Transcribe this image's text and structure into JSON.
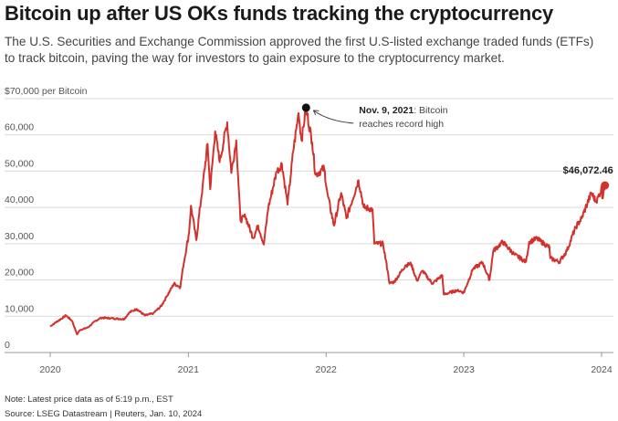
{
  "header": {
    "title": "Bitcoin up after US OKs funds tracking the cryptocurrency",
    "subtitle": "The U.S. Securities and Exchange Commission approved the first U.S-listed exchange traded funds (ETFs) to track bitcoin, paving the way for investors to gain exposure to the cryptocurrency market."
  },
  "footer": {
    "note": "Note: Latest price data as of 5:19 p.m., EST",
    "source": "Source: LSEG Datastream | Reuters, Jan. 10, 2024"
  },
  "colors": {
    "line": "#d2322d",
    "grid": "#d9d9d9",
    "axis": "#999999",
    "text": "#222222"
  },
  "chart_data": {
    "type": "line",
    "title": "Bitcoin up after US OKs funds tracking the cryptocurrency",
    "ylabel": "$70,000 per Bitcoin",
    "xlabel": "",
    "ylim": [
      0,
      70000
    ],
    "xlim": [
      "2020-01-01",
      "2024-01-10"
    ],
    "grid": true,
    "y_ticks": [
      {
        "value": 70000,
        "label": "$70,000 per Bitcoin"
      },
      {
        "value": 60000,
        "label": "60,000"
      },
      {
        "value": 50000,
        "label": "50,000"
      },
      {
        "value": 40000,
        "label": "40,000"
      },
      {
        "value": 30000,
        "label": "30,000"
      },
      {
        "value": 20000,
        "label": "20,000"
      },
      {
        "value": 10000,
        "label": "10,000"
      },
      {
        "value": 0,
        "label": "0"
      }
    ],
    "x_ticks": [
      {
        "value": "2020-01-01",
        "label": "2020"
      },
      {
        "value": "2021-01-01",
        "label": "2021"
      },
      {
        "value": "2022-01-01",
        "label": "2022"
      },
      {
        "value": "2023-01-01",
        "label": "2023"
      },
      {
        "value": "2024-01-01",
        "label": "2024"
      }
    ],
    "series": [
      {
        "color": "#d2322d",
        "points": [
          [
            "2020-01-01",
            7200
          ],
          [
            "2020-01-20",
            8600
          ],
          [
            "2020-02-12",
            10200
          ],
          [
            "2020-02-28",
            8700
          ],
          [
            "2020-03-12",
            5000
          ],
          [
            "2020-03-20",
            6200
          ],
          [
            "2020-04-10",
            6900
          ],
          [
            "2020-04-30",
            8700
          ],
          [
            "2020-05-15",
            9600
          ],
          [
            "2020-06-15",
            9400
          ],
          [
            "2020-07-15",
            9200
          ],
          [
            "2020-07-28",
            11000
          ],
          [
            "2020-08-17",
            12000
          ],
          [
            "2020-09-08",
            10200
          ],
          [
            "2020-09-30",
            10800
          ],
          [
            "2020-10-21",
            12800
          ],
          [
            "2020-11-05",
            15500
          ],
          [
            "2020-11-24",
            19000
          ],
          [
            "2020-12-11",
            18000
          ],
          [
            "2020-12-17",
            23000
          ],
          [
            "2021-01-03",
            33000
          ],
          [
            "2021-01-08",
            40500
          ],
          [
            "2021-01-22",
            31000
          ],
          [
            "2021-02-08",
            46000
          ],
          [
            "2021-02-21",
            57500
          ],
          [
            "2021-02-28",
            45000
          ],
          [
            "2021-03-13",
            61000
          ],
          [
            "2021-03-25",
            52500
          ],
          [
            "2021-04-14",
            63500
          ],
          [
            "2021-04-25",
            49500
          ],
          [
            "2021-05-08",
            58500
          ],
          [
            "2021-05-19",
            36500
          ],
          [
            "2021-06-01",
            37500
          ],
          [
            "2021-06-22",
            31500
          ],
          [
            "2021-07-05",
            35000
          ],
          [
            "2021-07-20",
            29800
          ],
          [
            "2021-08-01",
            40000
          ],
          [
            "2021-08-23",
            49800
          ],
          [
            "2021-09-06",
            52000
          ],
          [
            "2021-09-21",
            40800
          ],
          [
            "2021-10-06",
            55500
          ],
          [
            "2021-10-20",
            66000
          ],
          [
            "2021-10-28",
            58500
          ],
          [
            "2021-11-09",
            67500
          ],
          [
            "2021-11-25",
            58000
          ],
          [
            "2021-12-04",
            49000
          ],
          [
            "2021-12-27",
            50800
          ],
          [
            "2022-01-05",
            43500
          ],
          [
            "2022-01-22",
            35000
          ],
          [
            "2022-02-10",
            44000
          ],
          [
            "2022-02-24",
            37000
          ],
          [
            "2022-03-28",
            47500
          ],
          [
            "2022-04-11",
            40000
          ],
          [
            "2022-05-04",
            39500
          ],
          [
            "2022-05-09",
            30000
          ],
          [
            "2022-06-01",
            30000
          ],
          [
            "2022-06-13",
            22500
          ],
          [
            "2022-06-18",
            19000
          ],
          [
            "2022-07-01",
            19500
          ],
          [
            "2022-07-30",
            24000
          ],
          [
            "2022-08-14",
            24500
          ],
          [
            "2022-08-30",
            19800
          ],
          [
            "2022-09-13",
            22500
          ],
          [
            "2022-10-10",
            19000
          ],
          [
            "2022-11-05",
            21300
          ],
          [
            "2022-11-09",
            16000
          ],
          [
            "2022-12-15",
            17200
          ],
          [
            "2023-01-01",
            16500
          ],
          [
            "2023-01-25",
            23000
          ],
          [
            "2023-02-20",
            24800
          ],
          [
            "2023-03-10",
            20000
          ],
          [
            "2023-03-20",
            28000
          ],
          [
            "2023-04-14",
            30500
          ],
          [
            "2023-05-15",
            27000
          ],
          [
            "2023-06-15",
            25000
          ],
          [
            "2023-06-23",
            30500
          ],
          [
            "2023-07-13",
            31400
          ],
          [
            "2023-08-16",
            29000
          ],
          [
            "2023-08-18",
            26000
          ],
          [
            "2023-09-11",
            25000
          ],
          [
            "2023-10-01",
            28000
          ],
          [
            "2023-10-24",
            34500
          ],
          [
            "2023-11-09",
            37000
          ],
          [
            "2023-12-05",
            44000
          ],
          [
            "2023-12-18",
            41500
          ],
          [
            "2024-01-02",
            45500
          ],
          [
            "2024-01-03",
            42500
          ],
          [
            "2024-01-10",
            46072.46
          ]
        ]
      }
    ],
    "annotations": [
      {
        "date": "2021-11-09",
        "value": 67500,
        "bold": "Nov. 9, 2021",
        "text1": ": Bitcoin",
        "text2": "reaches record high"
      },
      {
        "date": "2024-01-10",
        "value": 46072.46,
        "label": "$46,072.46"
      }
    ]
  }
}
